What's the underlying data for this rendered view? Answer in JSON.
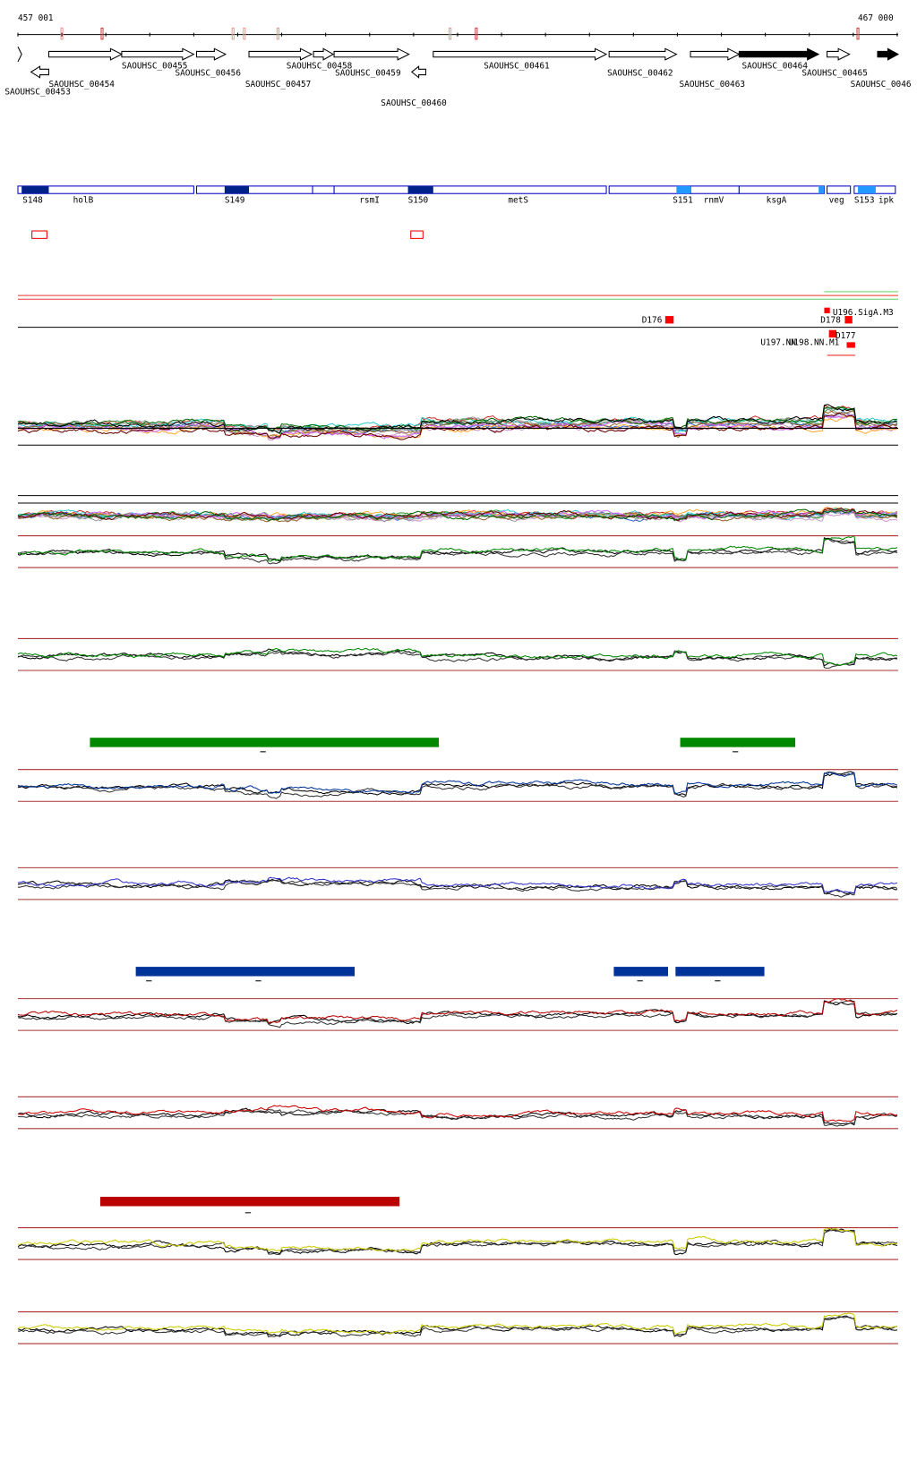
{
  "header": {
    "start": "457 001",
    "end": "467 000"
  },
  "genes": [
    "SAOUHSC_00453",
    "SAOUHSC_00454",
    "SAOUHSC_00455",
    "SAOUHSC_00456",
    "SAOUHSC_00457",
    "SAOUHSC_00458",
    "SAOUHSC_00459",
    "SAOUHSC_00460",
    "SAOUHSC_00461",
    "SAOUHSC_00462",
    "SAOUHSC_00463",
    "SAOUHSC_00464",
    "SAOUHSC_00465",
    "SAOUHSC_0046"
  ],
  "regions": [
    "S148",
    "holB",
    "S149",
    "rsmI",
    "S150",
    "metS",
    "S151",
    "rnmV",
    "ksgA",
    "veg",
    "S153",
    "ipk"
  ],
  "features": [
    "D176",
    "D178",
    "U196.SigA.M3",
    "D177",
    "U197.NN",
    "U198.NN.M1"
  ]
}
